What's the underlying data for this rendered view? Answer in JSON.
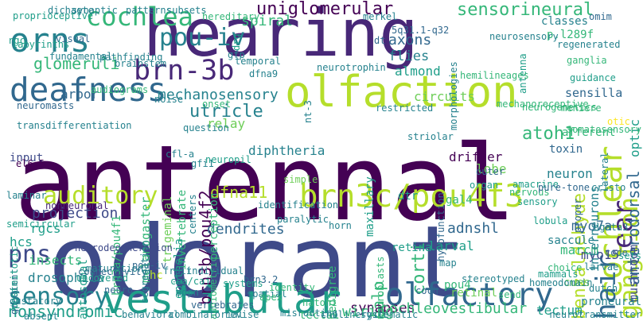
{
  "palette": {
    "viridis": [
      "#440154",
      "#482878",
      "#3e4a89",
      "#31688e",
      "#26828e",
      "#1f9e89",
      "#35b779",
      "#6ece58",
      "#b5de2b",
      "#fde725"
    ]
  },
  "words": [
    "antennal",
    "odorant",
    "hearing",
    "olfaction",
    "vestibular",
    "orns",
    "deafness",
    "brn3c/pou4f3",
    "olfactory",
    "brn-3b",
    "cochlea",
    "auditory",
    "pou-iv",
    "uniglomerular",
    "sensorineural",
    "cochlear",
    "hair",
    "ear",
    "sensory",
    "pns",
    "ganglion",
    "glomeruli",
    "utricle",
    "atoh1",
    "brn3b/pou4f2",
    "anterodorsal",
    "benzaldehyde",
    "adnshl",
    "dfna11",
    "corti",
    "mechanosensory",
    "spiral",
    "axons",
    "flies",
    "almond",
    "nonsyndromic",
    "insects",
    "drosophila",
    "projection",
    "rgcs",
    "hcs",
    "dendrites",
    "palp",
    "synapses",
    "tectal",
    "cochleovestibular",
    "wiring",
    "sensilla",
    "optic",
    "rgc",
    "visual",
    "labyrinths",
    "arbor",
    "noise",
    "relay",
    "circuits",
    "lobe",
    "drifter",
    "toxin",
    "lateral",
    "neuron",
    "afferent",
    "gal4",
    "dtr",
    "outer",
    "maxillary",
    "hypofunction",
    "diphtheria",
    "perception",
    "invertebrate",
    "epithelia",
    "trigeminal",
    "melanogaster",
    "gfi1",
    "input",
    "hc",
    "adpn",
    "autosomal",
    "audiometric",
    "retina",
    "larval",
    "retinal",
    "brn3a/pou4f1",
    "spatial",
    "brn3.2",
    "pou4",
    "myo7a",
    "myo15",
    "marcm",
    "saccule",
    "interneurons",
    "mushroom",
    "tectum",
    "ganglia",
    "p.l289f",
    "classes",
    "antenna",
    "dt",
    "5q31.1-q32",
    "guidance",
    "neurotrophin",
    "hemilineages",
    "brainstem",
    "pou-iv",
    "cues",
    "larvae",
    "code",
    "sets",
    "choice",
    "dutch",
    "proneural",
    "gustatory",
    "vertebrates",
    "hatoh1",
    "pedigree",
    "stereotyped",
    "neuroblasts",
    "audiograms",
    "gradient",
    "postmitotic",
    "connectivity",
    "pathfinding",
    "fundamental",
    "temporal",
    "dfna9",
    "gfp",
    "drg",
    "nt-3",
    "morphologies",
    "neurosensory",
    "regenerated",
    "omim",
    "proprioceptive",
    "dichaete",
    "synaptic",
    "patterns",
    "subsets",
    "hereditary",
    "merkel",
    "neuromasts",
    "transdifferentiation",
    "lobula",
    "sensory",
    "organ",
    "amacrine",
    "nervous",
    "neurogenetics",
    "somatosensory",
    "mechanoreceptive",
    "pure-tone",
    "striolar",
    "restricted",
    "meniere",
    "onset",
    "neuropil",
    "cfl-a",
    "paralytic",
    "simple",
    "map",
    "cristo",
    "proper",
    "fruit",
    "hgata3",
    "horn",
    "coch",
    "mammals",
    "homeodomain",
    "send",
    "maturation",
    "uncovered",
    "cba/caj",
    "individual",
    "systems",
    "identity",
    "apex",
    "misrouting",
    "cholinergic",
    "systematic",
    "revise",
    "combinatorial",
    "behavioral",
    "neurotransmitter",
    "absent",
    "laminar",
    "semicircular",
    "identification",
    "centers",
    "segregation",
    "question",
    "otic",
    "el6.5",
    "nonneuronal",
    "neurodegeneration",
    "neuro"
  ]
}
